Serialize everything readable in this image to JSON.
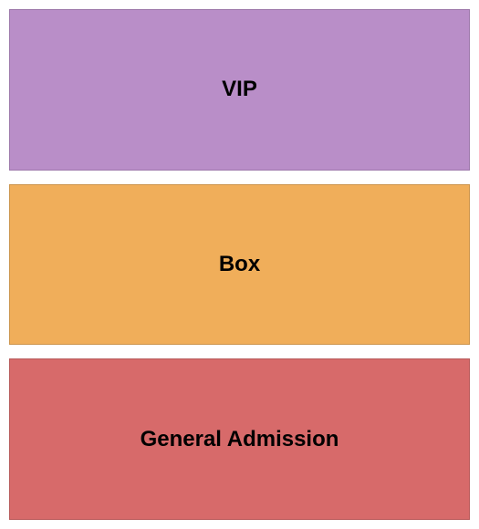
{
  "seating_chart": {
    "type": "infographic",
    "background_color": "#ffffff",
    "section_gap": 15,
    "padding": 10,
    "label_fontsize": 24,
    "label_fontweight": "bold",
    "label_color": "#000000",
    "border_color": "rgba(0,0,0,0.15)",
    "sections": [
      {
        "id": "vip",
        "label": "VIP",
        "color": "#b98ec8"
      },
      {
        "id": "box",
        "label": "Box",
        "color": "#f0ae5a"
      },
      {
        "id": "general-admission",
        "label": "General Admission",
        "color": "#d76a6a"
      }
    ]
  }
}
